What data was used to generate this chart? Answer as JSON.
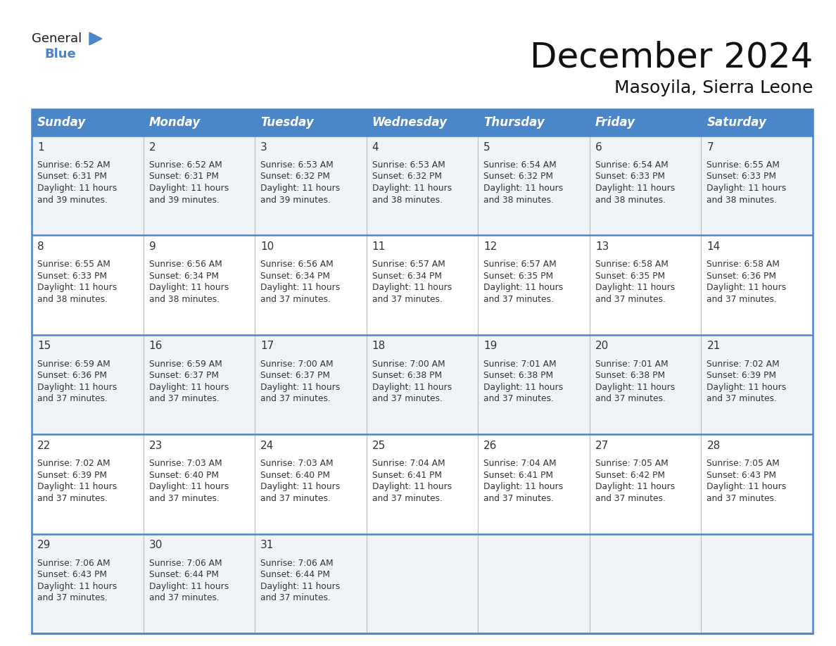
{
  "title": "December 2024",
  "subtitle": "Masoyila, Sierra Leone",
  "header_color": "#4a86c8",
  "header_text_color": "#ffffff",
  "border_color": "#4a86c8",
  "cell_border_color": "#cccccc",
  "days_of_week": [
    "Sunday",
    "Monday",
    "Tuesday",
    "Wednesday",
    "Thursday",
    "Friday",
    "Saturday"
  ],
  "title_fontsize": 36,
  "subtitle_fontsize": 18,
  "header_fontsize": 12,
  "day_num_fontsize": 11,
  "content_fontsize": 8.8,
  "calendar_data": [
    [
      {
        "day": 1,
        "sunrise": "6:52 AM",
        "sunset": "6:31 PM",
        "daylight_h": "11 hours",
        "daylight_m": "and 39 minutes."
      },
      {
        "day": 2,
        "sunrise": "6:52 AM",
        "sunset": "6:31 PM",
        "daylight_h": "11 hours",
        "daylight_m": "and 39 minutes."
      },
      {
        "day": 3,
        "sunrise": "6:53 AM",
        "sunset": "6:32 PM",
        "daylight_h": "11 hours",
        "daylight_m": "and 39 minutes."
      },
      {
        "day": 4,
        "sunrise": "6:53 AM",
        "sunset": "6:32 PM",
        "daylight_h": "11 hours",
        "daylight_m": "and 38 minutes."
      },
      {
        "day": 5,
        "sunrise": "6:54 AM",
        "sunset": "6:32 PM",
        "daylight_h": "11 hours",
        "daylight_m": "and 38 minutes."
      },
      {
        "day": 6,
        "sunrise": "6:54 AM",
        "sunset": "6:33 PM",
        "daylight_h": "11 hours",
        "daylight_m": "and 38 minutes."
      },
      {
        "day": 7,
        "sunrise": "6:55 AM",
        "sunset": "6:33 PM",
        "daylight_h": "11 hours",
        "daylight_m": "and 38 minutes."
      }
    ],
    [
      {
        "day": 8,
        "sunrise": "6:55 AM",
        "sunset": "6:33 PM",
        "daylight_h": "11 hours",
        "daylight_m": "and 38 minutes."
      },
      {
        "day": 9,
        "sunrise": "6:56 AM",
        "sunset": "6:34 PM",
        "daylight_h": "11 hours",
        "daylight_m": "and 38 minutes."
      },
      {
        "day": 10,
        "sunrise": "6:56 AM",
        "sunset": "6:34 PM",
        "daylight_h": "11 hours",
        "daylight_m": "and 37 minutes."
      },
      {
        "day": 11,
        "sunrise": "6:57 AM",
        "sunset": "6:34 PM",
        "daylight_h": "11 hours",
        "daylight_m": "and 37 minutes."
      },
      {
        "day": 12,
        "sunrise": "6:57 AM",
        "sunset": "6:35 PM",
        "daylight_h": "11 hours",
        "daylight_m": "and 37 minutes."
      },
      {
        "day": 13,
        "sunrise": "6:58 AM",
        "sunset": "6:35 PM",
        "daylight_h": "11 hours",
        "daylight_m": "and 37 minutes."
      },
      {
        "day": 14,
        "sunrise": "6:58 AM",
        "sunset": "6:36 PM",
        "daylight_h": "11 hours",
        "daylight_m": "and 37 minutes."
      }
    ],
    [
      {
        "day": 15,
        "sunrise": "6:59 AM",
        "sunset": "6:36 PM",
        "daylight_h": "11 hours",
        "daylight_m": "and 37 minutes."
      },
      {
        "day": 16,
        "sunrise": "6:59 AM",
        "sunset": "6:37 PM",
        "daylight_h": "11 hours",
        "daylight_m": "and 37 minutes."
      },
      {
        "day": 17,
        "sunrise": "7:00 AM",
        "sunset": "6:37 PM",
        "daylight_h": "11 hours",
        "daylight_m": "and 37 minutes."
      },
      {
        "day": 18,
        "sunrise": "7:00 AM",
        "sunset": "6:38 PM",
        "daylight_h": "11 hours",
        "daylight_m": "and 37 minutes."
      },
      {
        "day": 19,
        "sunrise": "7:01 AM",
        "sunset": "6:38 PM",
        "daylight_h": "11 hours",
        "daylight_m": "and 37 minutes."
      },
      {
        "day": 20,
        "sunrise": "7:01 AM",
        "sunset": "6:38 PM",
        "daylight_h": "11 hours",
        "daylight_m": "and 37 minutes."
      },
      {
        "day": 21,
        "sunrise": "7:02 AM",
        "sunset": "6:39 PM",
        "daylight_h": "11 hours",
        "daylight_m": "and 37 minutes."
      }
    ],
    [
      {
        "day": 22,
        "sunrise": "7:02 AM",
        "sunset": "6:39 PM",
        "daylight_h": "11 hours",
        "daylight_m": "and 37 minutes."
      },
      {
        "day": 23,
        "sunrise": "7:03 AM",
        "sunset": "6:40 PM",
        "daylight_h": "11 hours",
        "daylight_m": "and 37 minutes."
      },
      {
        "day": 24,
        "sunrise": "7:03 AM",
        "sunset": "6:40 PM",
        "daylight_h": "11 hours",
        "daylight_m": "and 37 minutes."
      },
      {
        "day": 25,
        "sunrise": "7:04 AM",
        "sunset": "6:41 PM",
        "daylight_h": "11 hours",
        "daylight_m": "and 37 minutes."
      },
      {
        "day": 26,
        "sunrise": "7:04 AM",
        "sunset": "6:41 PM",
        "daylight_h": "11 hours",
        "daylight_m": "and 37 minutes."
      },
      {
        "day": 27,
        "sunrise": "7:05 AM",
        "sunset": "6:42 PM",
        "daylight_h": "11 hours",
        "daylight_m": "and 37 minutes."
      },
      {
        "day": 28,
        "sunrise": "7:05 AM",
        "sunset": "6:43 PM",
        "daylight_h": "11 hours",
        "daylight_m": "and 37 minutes."
      }
    ],
    [
      {
        "day": 29,
        "sunrise": "7:06 AM",
        "sunset": "6:43 PM",
        "daylight_h": "11 hours",
        "daylight_m": "and 37 minutes."
      },
      {
        "day": 30,
        "sunrise": "7:06 AM",
        "sunset": "6:44 PM",
        "daylight_h": "11 hours",
        "daylight_m": "and 37 minutes."
      },
      {
        "day": 31,
        "sunrise": "7:06 AM",
        "sunset": "6:44 PM",
        "daylight_h": "11 hours",
        "daylight_m": "and 37 minutes."
      },
      null,
      null,
      null,
      null
    ]
  ],
  "logo_general_color": "#1a1a1a",
  "logo_blue_color": "#4a86c8",
  "logo_triangle_color": "#4a86c8"
}
